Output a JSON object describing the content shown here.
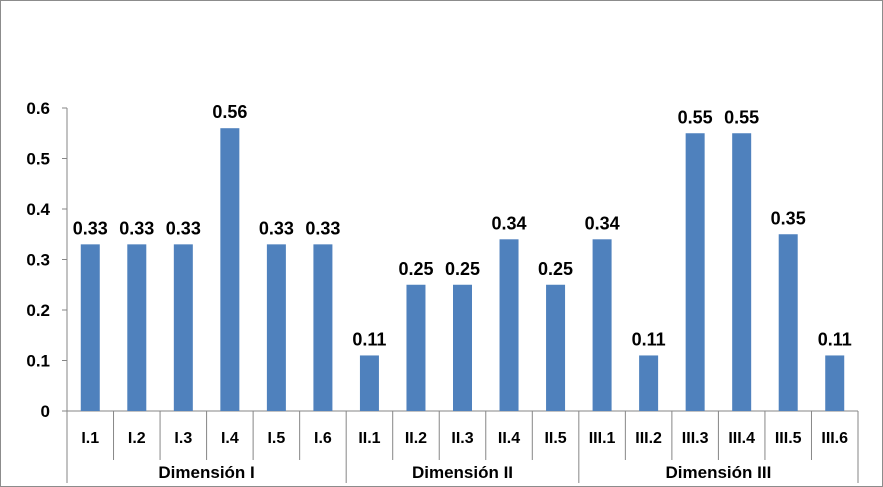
{
  "chart_data": {
    "type": "bar",
    "title": "",
    "xlabel": "",
    "ylabel": "",
    "ylim": [
      0,
      0.6
    ],
    "yticks": [
      "0",
      "0.1",
      "0.2",
      "0.3",
      "0.4",
      "0.5",
      "0.6"
    ],
    "categories": [
      "I.1",
      "I.2",
      "I.3",
      "I.4",
      "I.5",
      "I.6",
      "II.1",
      "II.2",
      "II.3",
      "II.4",
      "II.5",
      "III.1",
      "III.2",
      "III.3",
      "III.4",
      "III.5",
      "III.6"
    ],
    "values": [
      0.33,
      0.33,
      0.33,
      0.56,
      0.33,
      0.33,
      0.11,
      0.25,
      0.25,
      0.34,
      0.25,
      0.34,
      0.11,
      0.55,
      0.55,
      0.35,
      0.11
    ],
    "value_labels": [
      "0.33",
      "0.33",
      "0.33",
      "0.56",
      "0.33",
      "0.33",
      "0.11",
      "0.25",
      "0.25",
      "0.34",
      "0.25",
      "0.34",
      "0.11",
      "0.55",
      "0.55",
      "0.35",
      "0.11"
    ],
    "groups": [
      {
        "label": "Dimensión I",
        "start": 0,
        "count": 6
      },
      {
        "label": "Dimensión II",
        "start": 6,
        "count": 5
      },
      {
        "label": "Dimensión III",
        "start": 11,
        "count": 6
      }
    ],
    "bar_color": "#4f81bd",
    "axis_color": "#868686",
    "grid": false,
    "legend": "none"
  }
}
